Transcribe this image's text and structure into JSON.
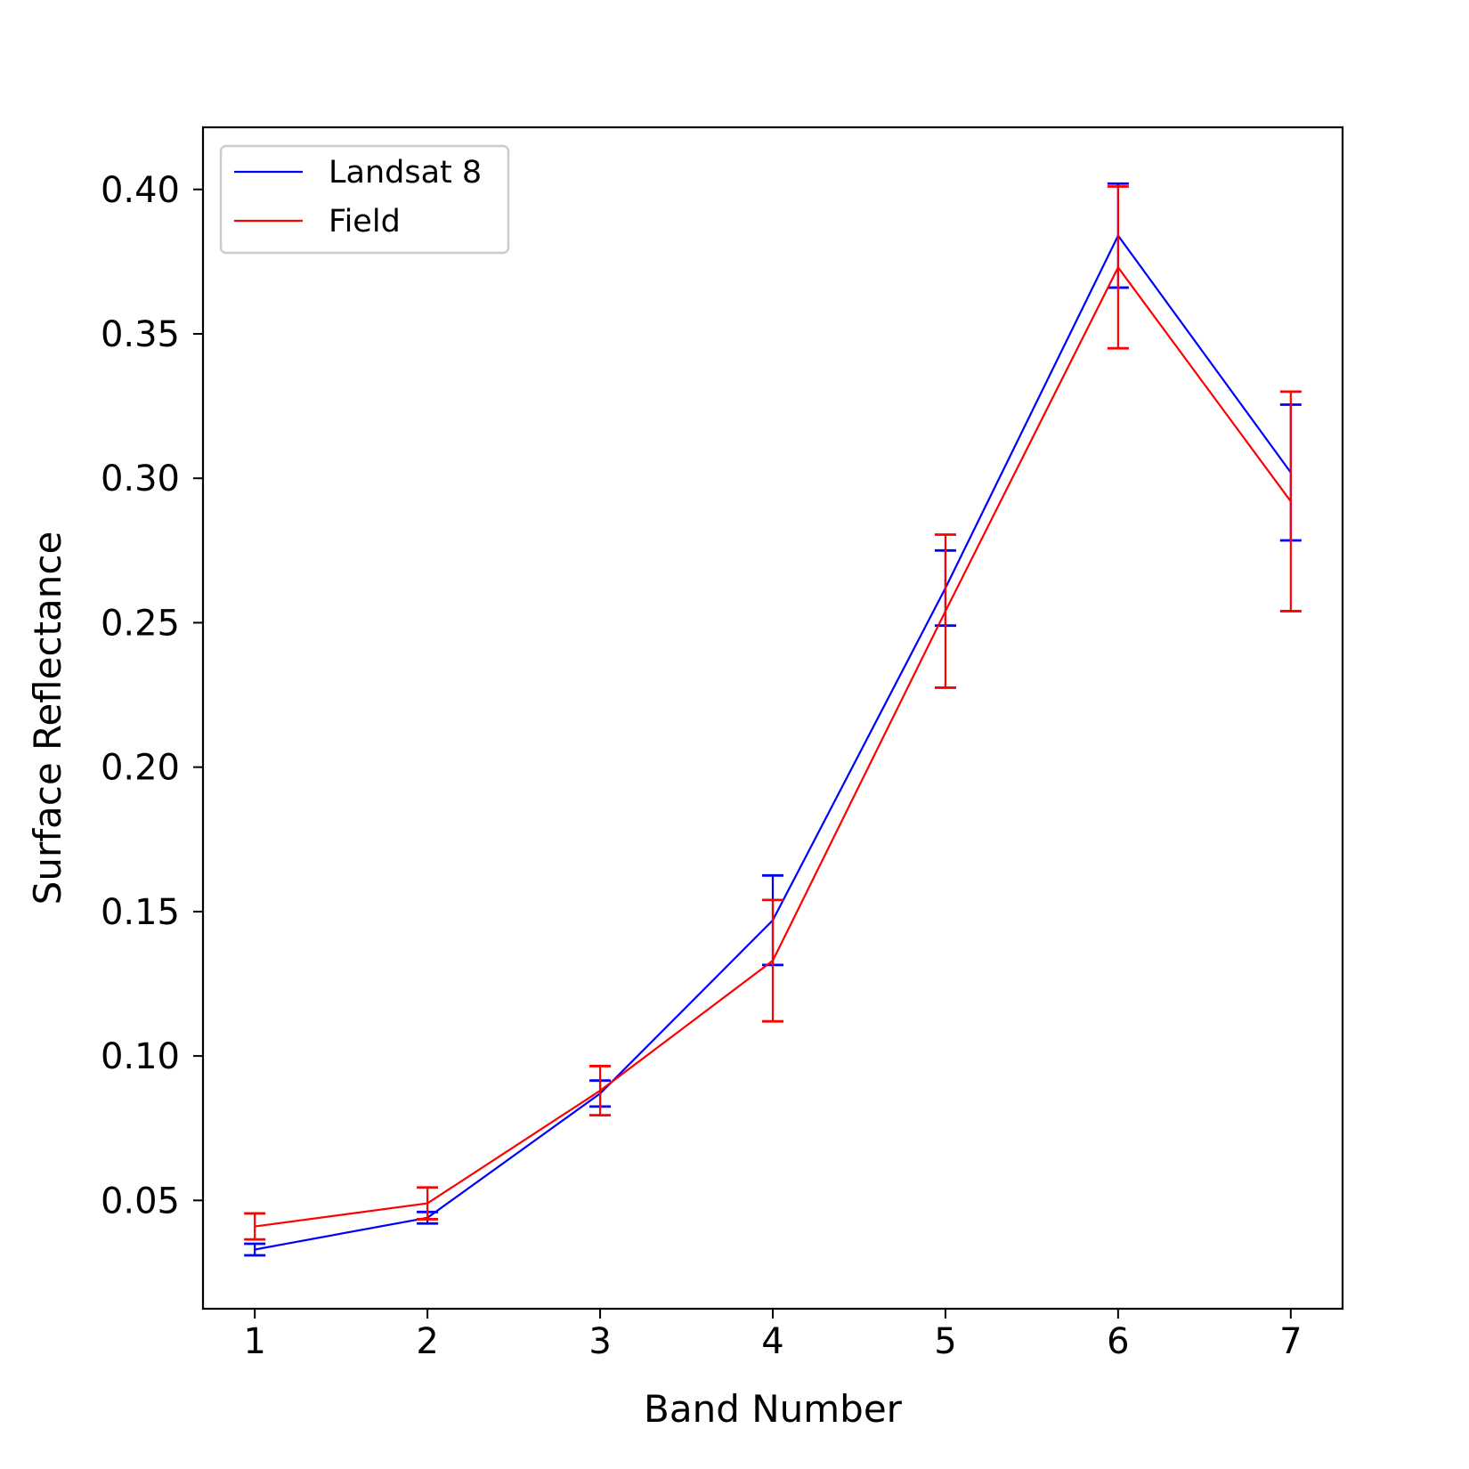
{
  "chart_data": {
    "type": "line",
    "title": "",
    "xlabel": "Band Number",
    "ylabel": "Surface Reflectance",
    "x": [
      1,
      2,
      3,
      4,
      5,
      6,
      7
    ],
    "xticks": [
      "1",
      "2",
      "3",
      "4",
      "5",
      "6",
      "7"
    ],
    "yticks": [
      "0.05",
      "0.10",
      "0.15",
      "0.20",
      "0.25",
      "0.30",
      "0.35",
      "0.40"
    ],
    "xlim": [
      0.7,
      7.3
    ],
    "ylim": [
      0.0125,
      0.4215
    ],
    "grid": false,
    "legend_position": "upper-left",
    "series": [
      {
        "name": "Landsat 8",
        "color": "#0000ff",
        "values": [
          0.033,
          0.044,
          0.087,
          0.147,
          0.262,
          0.384,
          0.302
        ],
        "errors": [
          0.002,
          0.002,
          0.0045,
          0.0155,
          0.013,
          0.018,
          0.0235
        ]
      },
      {
        "name": "Field",
        "color": "#ff0000",
        "values": [
          0.041,
          0.049,
          0.088,
          0.133,
          0.254,
          0.373,
          0.292
        ],
        "errors": [
          0.0045,
          0.0055,
          0.0085,
          0.021,
          0.0265,
          0.028,
          0.038
        ]
      }
    ]
  }
}
